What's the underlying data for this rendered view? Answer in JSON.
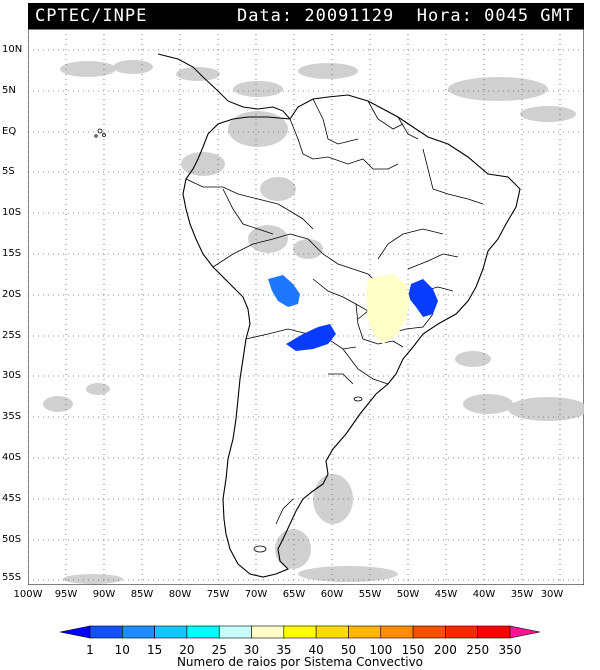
{
  "header": {
    "org": "CPTEC/INPE",
    "datetime": "Data: 20091129  Hora: 0045 GMT"
  },
  "map": {
    "lat_labels": [
      "10N",
      "5N",
      "EQ",
      "5S",
      "10S",
      "15S",
      "20S",
      "25S",
      "30S",
      "35S",
      "40S",
      "45S",
      "50S",
      "55S"
    ],
    "lon_labels": [
      "100W",
      "95W",
      "90W",
      "85W",
      "80W",
      "75W",
      "70W",
      "65W",
      "60W",
      "55W",
      "50W",
      "45W",
      "40W",
      "35W",
      "30W"
    ],
    "lat_range": [
      -56,
      12
    ],
    "lon_range": [
      -100,
      -28
    ],
    "grid": "dotted",
    "colors": {
      "land_outline": "#000000",
      "cloud_gray": "#c8c8c8",
      "ocean": "#ffffff"
    }
  },
  "colorbar": {
    "title": "Numero de raios por Sistema Convectivo",
    "ticks": [
      "1",
      "10",
      "15",
      "20",
      "25",
      "30",
      "35",
      "40",
      "50",
      "100",
      "150",
      "200",
      "250",
      "350"
    ],
    "colors": [
      "#0000ff",
      "#1450ff",
      "#1e8cff",
      "#14c8ff",
      "#00ffff",
      "#c8ffff",
      "#ffffc8",
      "#ffff00",
      "#ffdc00",
      "#ffb400",
      "#ff8c00",
      "#ff5000",
      "#ff2800",
      "#ff0000",
      "#ff1493"
    ]
  },
  "systems": [
    {
      "name": "bolivia-cell",
      "color": "#1e78ff"
    },
    {
      "name": "paraguay-cell",
      "color": "#0a3cff"
    },
    {
      "name": "minas-cell",
      "color": "#0a3cff"
    },
    {
      "name": "central-brazil-cell",
      "color": "#ffffc8"
    }
  ]
}
